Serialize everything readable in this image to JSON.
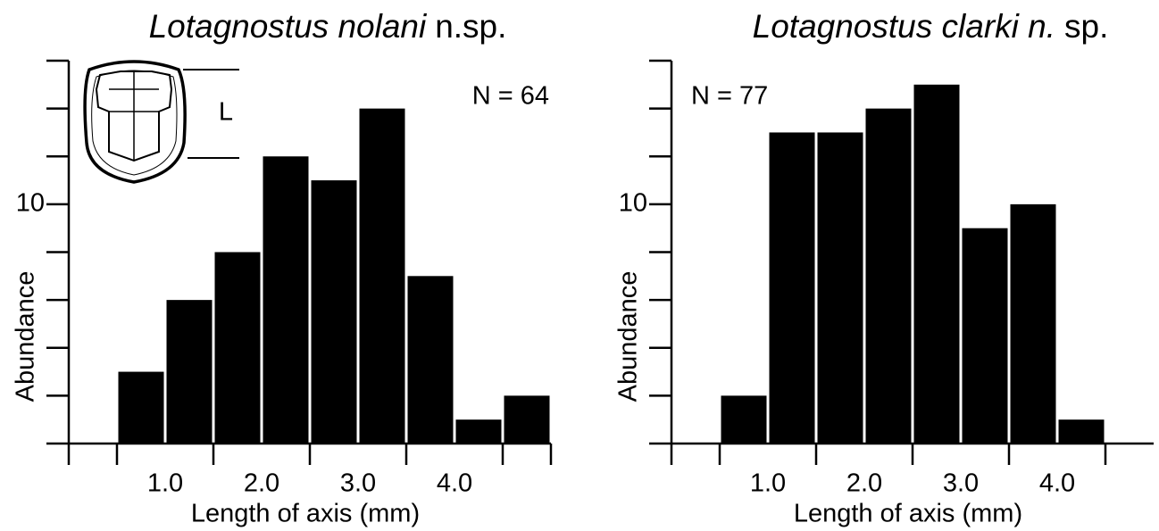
{
  "chart_data": [
    {
      "type": "histogram",
      "title_italic": "Lotagnostus nolani",
      "title_rest": "n.sp.",
      "annotation": "N = 64",
      "inset_label": "L",
      "xlabel": "Length of axis (mm)",
      "ylabel": "Abundance",
      "bins": [
        0.5,
        1.0,
        1.5,
        2.0,
        2.5,
        3.0,
        3.5,
        4.0,
        4.5,
        5.0
      ],
      "counts": [
        3,
        6,
        8,
        12,
        11,
        14,
        7,
        1,
        2
      ],
      "color": "#000000",
      "xlim": [
        0,
        5
      ],
      "ylim": [
        0,
        16
      ],
      "xticks": [
        {
          "value": 1,
          "label": "1.0"
        },
        {
          "value": 2,
          "label": "2.0"
        },
        {
          "value": 3,
          "label": "3.0"
        },
        {
          "value": 4,
          "label": "4.0"
        }
      ],
      "x_minor_ticks": [
        0,
        0.5,
        1.5,
        2.5,
        3.5,
        4.5,
        5
      ],
      "yticks": [
        10
      ],
      "y_minor_ticks": [
        0,
        2,
        4,
        6,
        8,
        12,
        14,
        16
      ]
    },
    {
      "type": "histogram",
      "title_italic": "Lotagnostus clarki n.",
      "title_rest": "sp.",
      "annotation": "N = 77",
      "xlabel": "Length of axis (mm)",
      "ylabel": "Abundance",
      "bins": [
        0.5,
        1.0,
        1.5,
        2.0,
        2.5,
        3.0,
        3.5,
        4.0,
        4.5
      ],
      "counts": [
        2,
        13,
        13,
        14,
        15,
        9,
        10,
        1
      ],
      "color": "#000000",
      "xlim": [
        0,
        5
      ],
      "ylim": [
        0,
        16
      ],
      "xticks": [
        {
          "value": 1,
          "label": "1.0"
        },
        {
          "value": 2,
          "label": "2.0"
        },
        {
          "value": 3,
          "label": "3.0"
        },
        {
          "value": 4,
          "label": "4.0"
        }
      ],
      "x_minor_ticks": [
        0,
        0.5,
        1.5,
        2.5,
        3.5,
        4.5
      ],
      "yticks": [
        10
      ],
      "y_minor_ticks": [
        0,
        2,
        4,
        6,
        8,
        12,
        14,
        16
      ]
    }
  ]
}
